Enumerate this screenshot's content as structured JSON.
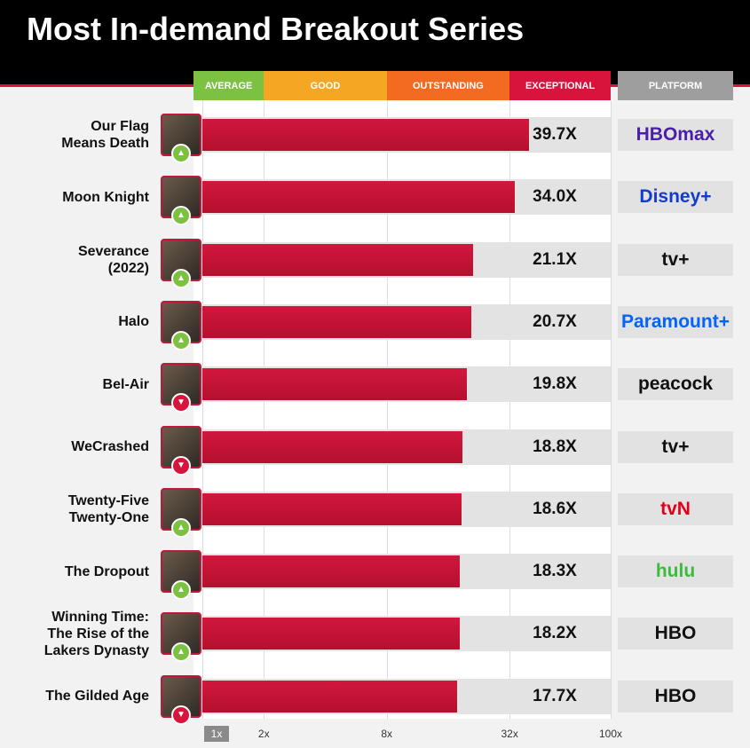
{
  "chart_data": {
    "type": "bar",
    "orientation": "horizontal",
    "title": "Most In-demand Breakout Series",
    "categories": [
      "Our Flag\nMeans Death",
      "Moon Knight",
      "Severance\n(2022)",
      "Halo",
      "Bel-Air",
      "WeCrashed",
      "Twenty-Five\nTwenty-One",
      "The Dropout",
      "Winning Time:\nThe Rise of the\nLakers Dynasty",
      "The Gilded Age"
    ],
    "values": [
      39.7,
      34.0,
      21.1,
      20.7,
      19.8,
      18.8,
      18.6,
      18.3,
      18.2,
      17.7
    ],
    "value_labels": [
      "39.7X",
      "34.0X",
      "21.1X",
      "20.7X",
      "19.8X",
      "18.8X",
      "18.6X",
      "18.3X",
      "18.2X",
      "17.7X"
    ],
    "color": "#d1173d",
    "trend": [
      "up",
      "up",
      "up",
      "up",
      "down",
      "down",
      "up",
      "up",
      "up",
      "down"
    ],
    "platform_header": "PLATFORM",
    "platforms": [
      "HBOmax",
      "Disney+",
      "tv+",
      "Paramount+",
      "peacock",
      "tv+",
      "tvN",
      "hulu",
      "HBO",
      "HBO"
    ],
    "platform_colors": [
      "#4b1fa8",
      "#113ccf",
      "#111111",
      "#0064ff",
      "#111111",
      "#111111",
      "#e0001b",
      "#3dbb3d",
      "#111111",
      "#111111"
    ],
    "tiers": [
      {
        "name": "AVERAGE",
        "color": "#7dc142"
      },
      {
        "name": "GOOD",
        "color": "#f5a623"
      },
      {
        "name": "OUTSTANDING",
        "color": "#f26b21"
      },
      {
        "name": "EXCEPTIONAL",
        "color": "#d7143c"
      }
    ],
    "xscale": "log",
    "xlim": [
      1,
      100
    ],
    "xticks": [
      {
        "value": 1,
        "label": "1x"
      },
      {
        "value": 2,
        "label": "2x"
      },
      {
        "value": 8,
        "label": "8x"
      },
      {
        "value": 32,
        "label": "32x"
      },
      {
        "value": 100,
        "label": "100x"
      }
    ]
  }
}
